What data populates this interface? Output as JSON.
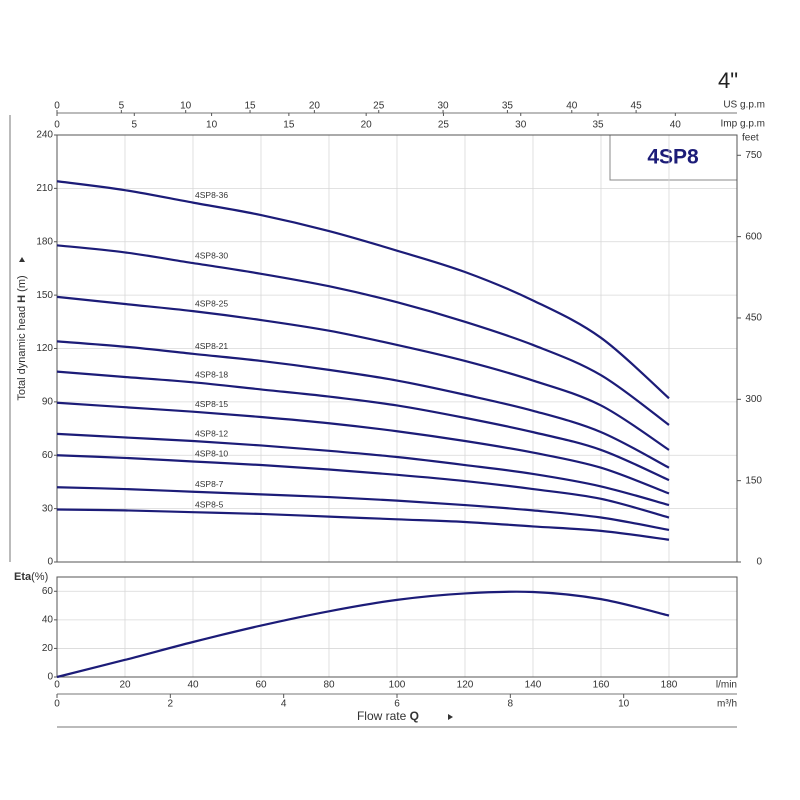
{
  "chart_data": [
    {
      "type": "line",
      "title": "4SP8",
      "corner_title": "4\"",
      "ylabel": {
        "text": "Total dynamic head",
        "symbol": "H",
        "unit": "(m)"
      },
      "x": [
        0,
        20,
        40,
        60,
        80,
        100,
        120,
        140,
        160,
        180
      ],
      "xlim": [
        0,
        200
      ],
      "ylim": [
        0,
        240
      ],
      "yticks": [
        0,
        30,
        60,
        90,
        120,
        150,
        180,
        210,
        240
      ],
      "y2label": "feet",
      "y2lim": [
        0,
        787.4
      ],
      "y2ticks": [
        0,
        150,
        300,
        450,
        600,
        750
      ],
      "x2label": "US g.p.m",
      "x2lim": [
        0,
        52.84
      ],
      "x2ticks": [
        0,
        5,
        10,
        15,
        20,
        25,
        30,
        35,
        40,
        45
      ],
      "x3label": "Imp g.p.m",
      "x3lim": [
        0,
        43.99
      ],
      "x3ticks": [
        0,
        5,
        10,
        15,
        20,
        25,
        30,
        35,
        40
      ],
      "grid": true,
      "series": [
        {
          "name": "4SP8-36",
          "color": "#1c1c78",
          "values": [
            214,
            209,
            202,
            195,
            186,
            175,
            163,
            147,
            126,
            92
          ]
        },
        {
          "name": "4SP8-30",
          "color": "#1c1c78",
          "values": [
            178,
            174,
            168,
            162,
            155,
            146,
            135,
            122,
            105,
            77
          ]
        },
        {
          "name": "4SP8-25",
          "color": "#1c1c78",
          "values": [
            149,
            145,
            141,
            136,
            130,
            122,
            113,
            102,
            88,
            63
          ]
        },
        {
          "name": "4SP8-21",
          "color": "#1c1c78",
          "values": [
            124,
            121,
            117,
            113,
            108,
            102,
            94,
            85,
            73,
            53
          ]
        },
        {
          "name": "4SP8-18",
          "color": "#1c1c78",
          "values": [
            107,
            104,
            101,
            97,
            93,
            88,
            81,
            73,
            63,
            46
          ]
        },
        {
          "name": "4SP8-15",
          "color": "#1c1c78",
          "values": [
            89.5,
            87,
            84.5,
            81.5,
            78,
            73.5,
            68,
            61.5,
            53,
            38.5
          ]
        },
        {
          "name": "4SP8-12",
          "color": "#1c1c78",
          "values": [
            72,
            70,
            68,
            65.5,
            62.5,
            59,
            54.5,
            49.5,
            42.5,
            32
          ]
        },
        {
          "name": "4SP8-10",
          "color": "#1c1c78",
          "values": [
            60,
            58.5,
            56.5,
            54.5,
            52,
            49,
            45.5,
            41,
            35.5,
            25
          ]
        },
        {
          "name": "4SP8-7",
          "color": "#1c1c78",
          "values": [
            42,
            41,
            39.5,
            38,
            36.5,
            34.5,
            32,
            29,
            25,
            18
          ]
        },
        {
          "name": "4SP8-5",
          "color": "#1c1c78",
          "values": [
            29.5,
            29,
            28,
            27,
            25.5,
            24,
            22.5,
            20,
            17.5,
            12.5
          ]
        }
      ]
    },
    {
      "type": "line",
      "ylabel": {
        "text": "Eta",
        "unit": "(%)"
      },
      "x": [
        0,
        20,
        40,
        60,
        80,
        100,
        120,
        140,
        160,
        180
      ],
      "values": [
        0,
        12,
        24.5,
        36,
        46,
        54,
        58.5,
        59.5,
        54.5,
        43
      ],
      "color": "#1c1c78",
      "xlim": [
        0,
        200
      ],
      "xticks": [
        0,
        20,
        40,
        60,
        80,
        100,
        120,
        140,
        160,
        180
      ],
      "xunit": "l/min",
      "ylim": [
        0,
        70
      ],
      "yticks": [
        0,
        20,
        40,
        60
      ],
      "x2lim": [
        0,
        12
      ],
      "x2ticks": [
        0,
        2,
        4,
        6,
        8,
        10
      ],
      "x2unit": "m³/h",
      "xlabel": {
        "text": "Flow rate",
        "symbol": "Q"
      },
      "grid": true
    }
  ]
}
